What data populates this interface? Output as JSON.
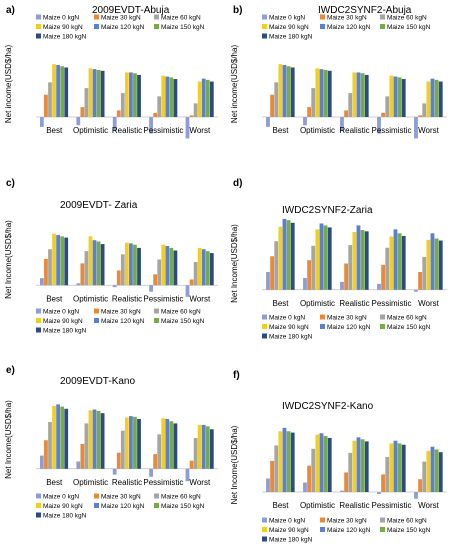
{
  "figure": {
    "series_names": [
      "Maize 0 kgN",
      "Maize 30 kgN",
      "Maize 60 kgN",
      "Maize 90 kgN",
      "Maize 120 kgN",
      "Maize 150 kgN",
      "Maize 180 kgN"
    ],
    "series_colors": [
      "#8e9dd6",
      "#e88a3a",
      "#a5a5a5",
      "#f2cf1f",
      "#5b7fd2",
      "#74ad47",
      "#2d4a82"
    ],
    "categories": [
      "Best",
      "Optimistic",
      "Realistic",
      "Pessimistic",
      "Worst"
    ],
    "ylabel": "Net income(USD$/ha)",
    "ylabel_alt": "Net Income(USD$/ha)",
    "yticks": [
      "1200",
      "1000",
      "800",
      "600",
      "400",
      "200",
      "0",
      "-200",
      "-400"
    ]
  },
  "chart_data": [
    {
      "type": "bar",
      "panel_label": "a)",
      "title": "2009EVDT-Abuja",
      "ylabel": "Net income(USD$/ha)",
      "ylim": [
        -400,
        1200
      ],
      "grid": false,
      "legend": "top",
      "categories": [
        "Best",
        "Optimistic",
        "Realistic",
        "Pessimistic",
        "Worst"
      ],
      "series": [
        {
          "name": "Maize 0 kgN",
          "values": [
            -120,
            -100,
            -170,
            -200,
            -260
          ]
        },
        {
          "name": "Maize 30 kgN",
          "values": [
            270,
            120,
            80,
            50,
            20
          ]
        },
        {
          "name": "Maize 60 kgN",
          "values": [
            420,
            350,
            290,
            250,
            165
          ]
        },
        {
          "name": "Maize 90 kgN",
          "values": [
            640,
            590,
            540,
            500,
            430
          ]
        },
        {
          "name": "Maize 120 kgN",
          "values": [
            630,
            580,
            540,
            490,
            465
          ]
        },
        {
          "name": "Maize 150 kgN",
          "values": [
            615,
            570,
            530,
            480,
            450
          ]
        },
        {
          "name": "Maize 180 kgN",
          "values": [
            600,
            560,
            510,
            460,
            430
          ]
        }
      ]
    },
    {
      "type": "bar",
      "panel_label": "b)",
      "title": "IWDC2SYNF2-Abuja",
      "ylabel": "Net income(USD$/ha)",
      "ylim": [
        -400,
        1200
      ],
      "grid": false,
      "legend": "top",
      "categories": [
        "Best",
        "Optimistic",
        "Realistic",
        "Pessimistic",
        "Worst"
      ],
      "series": [
        {
          "name": "Maize 0 kgN",
          "values": [
            -120,
            -100,
            -170,
            -200,
            -260
          ]
        },
        {
          "name": "Maize 30 kgN",
          "values": [
            270,
            120,
            80,
            50,
            20
          ]
        },
        {
          "name": "Maize 60 kgN",
          "values": [
            420,
            350,
            290,
            250,
            165
          ]
        },
        {
          "name": "Maize 90 kgN",
          "values": [
            640,
            590,
            540,
            500,
            430
          ]
        },
        {
          "name": "Maize 120 kgN",
          "values": [
            630,
            580,
            540,
            490,
            465
          ]
        },
        {
          "name": "Maize 150 kgN",
          "values": [
            615,
            570,
            530,
            480,
            450
          ]
        },
        {
          "name": "Maize 180 kgN",
          "values": [
            600,
            560,
            510,
            460,
            430
          ]
        }
      ]
    },
    {
      "type": "bar",
      "panel_label": "c)",
      "title": "2009EVDT- Zaria",
      "ylabel": "Net Income(USD$/ha)",
      "ylim": [
        -400,
        1200
      ],
      "grid": false,
      "legend": "bottom",
      "categories": [
        "Best",
        "Optimistic",
        "Realistic",
        "Pessimistic",
        "Worst"
      ],
      "series": [
        {
          "name": "Maize 0 kgN",
          "values": [
            110,
            30,
            -30,
            -100,
            -180
          ]
        },
        {
          "name": "Maize 30 kgN",
          "values": [
            410,
            340,
            230,
            170,
            90
          ]
        },
        {
          "name": "Maize 60 kgN",
          "values": [
            560,
            530,
            480,
            400,
            360
          ]
        },
        {
          "name": "Maize 90 kgN",
          "values": [
            800,
            760,
            660,
            630,
            580
          ]
        },
        {
          "name": "Maize 120 kgN",
          "values": [
            780,
            700,
            650,
            610,
            560
          ]
        },
        {
          "name": "Maize 150 kgN",
          "values": [
            760,
            680,
            630,
            580,
            530
          ]
        },
        {
          "name": "Maize 180 kgN",
          "values": [
            740,
            640,
            580,
            540,
            500
          ]
        }
      ]
    },
    {
      "type": "bar",
      "panel_label": "d)",
      "title": "IWDC2SYNF2-Zaria",
      "ylabel": "Net Income(USD$/ha)",
      "ylim": [
        -400,
        1200
      ],
      "grid": false,
      "legend": "bottom",
      "categories": [
        "Best",
        "Optimistic",
        "Realistic",
        "Pessimistic",
        "Worst"
      ],
      "series": [
        {
          "name": "Maize 0 kgN",
          "values": [
            270,
            180,
            120,
            90,
            -30
          ]
        },
        {
          "name": "Maize 30 kgN",
          "values": [
            510,
            450,
            400,
            380,
            270
          ]
        },
        {
          "name": "Maize 60 kgN",
          "values": [
            740,
            670,
            680,
            640,
            500
          ]
        },
        {
          "name": "Maize 90 kgN",
          "values": [
            960,
            920,
            880,
            810,
            760
          ]
        },
        {
          "name": "Maize 120 kgN",
          "values": [
            1080,
            1010,
            980,
            920,
            860
          ]
        },
        {
          "name": "Maize 150 kgN",
          "values": [
            1060,
            980,
            910,
            860,
            780
          ]
        },
        {
          "name": "Maize 180 kgN",
          "values": [
            1020,
            950,
            890,
            820,
            750
          ]
        }
      ]
    },
    {
      "type": "bar",
      "panel_label": "e)",
      "title": "2009EVDT-Kano",
      "ylabel": "Net Income(USD$/ha)",
      "ylim": [
        -400,
        1200
      ],
      "grid": false,
      "legend": "bottom",
      "categories": [
        "Best",
        "Optimistic",
        "Realistic",
        "Pessimistic",
        "Worst"
      ],
      "series": [
        {
          "name": "Maize 0 kgN",
          "values": [
            180,
            100,
            -80,
            -110,
            -170
          ]
        },
        {
          "name": "Maize 30 kgN",
          "values": [
            390,
            340,
            220,
            200,
            110
          ]
        },
        {
          "name": "Maize 60 kgN",
          "values": [
            640,
            620,
            520,
            470,
            420
          ]
        },
        {
          "name": "Maize 90 kgN",
          "values": [
            860,
            800,
            700,
            690,
            600
          ]
        },
        {
          "name": "Maize 120 kgN",
          "values": [
            880,
            810,
            720,
            680,
            600
          ]
        },
        {
          "name": "Maize 150 kgN",
          "values": [
            850,
            790,
            710,
            650,
            580
          ]
        },
        {
          "name": "Maize 180 kgN",
          "values": [
            820,
            760,
            680,
            620,
            540
          ]
        }
      ]
    },
    {
      "type": "bar",
      "panel_label": "f)",
      "title": "IWDC2SYNF2-Kano",
      "ylabel": "Net Income(USD$/ha)",
      "ylim": [
        -400,
        1200
      ],
      "grid": false,
      "legend": "bottom",
      "categories": [
        "Best",
        "Optimistic",
        "Realistic",
        "Pessimistic",
        "Worst"
      ],
      "series": [
        {
          "name": "Maize 0 kgN",
          "values": [
            200,
            140,
            20,
            -30,
            -100
          ]
        },
        {
          "name": "Maize 30 kgN",
          "values": [
            460,
            390,
            290,
            260,
            190
          ]
        },
        {
          "name": "Maize 60 kgN",
          "values": [
            690,
            640,
            580,
            520,
            450
          ]
        },
        {
          "name": "Maize 90 kgN",
          "values": [
            900,
            850,
            760,
            720,
            610
          ]
        },
        {
          "name": "Maize 120 kgN",
          "values": [
            950,
            870,
            810,
            760,
            670
          ]
        },
        {
          "name": "Maize 150 kgN",
          "values": [
            900,
            830,
            780,
            720,
            630
          ]
        },
        {
          "name": "Maize 180 kgN",
          "values": [
            880,
            800,
            750,
            700,
            590
          ]
        }
      ]
    }
  ]
}
